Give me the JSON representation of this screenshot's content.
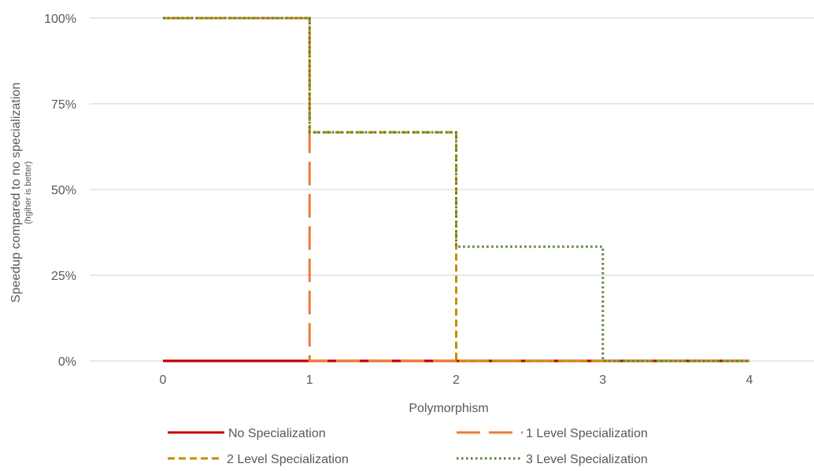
{
  "chart_data": {
    "type": "line",
    "step": true,
    "title": "",
    "xlabel": "Polymorphism",
    "ylabel": "Speedup compared to no specialization",
    "ylabel_note": "(hgiher is better)",
    "x": [
      0,
      1,
      2,
      3,
      4
    ],
    "xlim": [
      0,
      4
    ],
    "ylim": [
      0,
      100
    ],
    "y_unit": "%",
    "x_ticks": [
      "0",
      "1",
      "2",
      "3",
      "4"
    ],
    "y_ticks": [
      "0%",
      "25%",
      "50%",
      "75%",
      "100%"
    ],
    "y_tick_values": [
      0,
      25,
      50,
      75,
      100
    ],
    "grid": true,
    "legend_position": "bottom",
    "series": [
      {
        "name": "No Specialization",
        "color": "#C00000",
        "dash": "solid",
        "points": [
          [
            0,
            0
          ],
          [
            4,
            0
          ]
        ]
      },
      {
        "name": "1 Level Specialization",
        "color": "#ED7D31",
        "dash": "long-dash",
        "points": [
          [
            0,
            100
          ],
          [
            1,
            100
          ],
          [
            1,
            0
          ],
          [
            4,
            0
          ]
        ]
      },
      {
        "name": "2 Level Specialization",
        "color": "#BF9000",
        "dash": "short-dash",
        "points": [
          [
            0,
            100
          ],
          [
            1,
            100
          ],
          [
            1,
            66.7
          ],
          [
            2,
            66.7
          ],
          [
            2,
            0
          ],
          [
            4,
            0
          ]
        ]
      },
      {
        "name": "3 Level Specialization",
        "color": "#548235",
        "dash": "dot",
        "points": [
          [
            0,
            100
          ],
          [
            1,
            100
          ],
          [
            1,
            66.7
          ],
          [
            2,
            66.7
          ],
          [
            2,
            33.3
          ],
          [
            3,
            33.3
          ],
          [
            3,
            0
          ],
          [
            4,
            0
          ]
        ]
      }
    ]
  },
  "colors": {
    "gridline": "#D9D9D9",
    "text": "#595959"
  }
}
